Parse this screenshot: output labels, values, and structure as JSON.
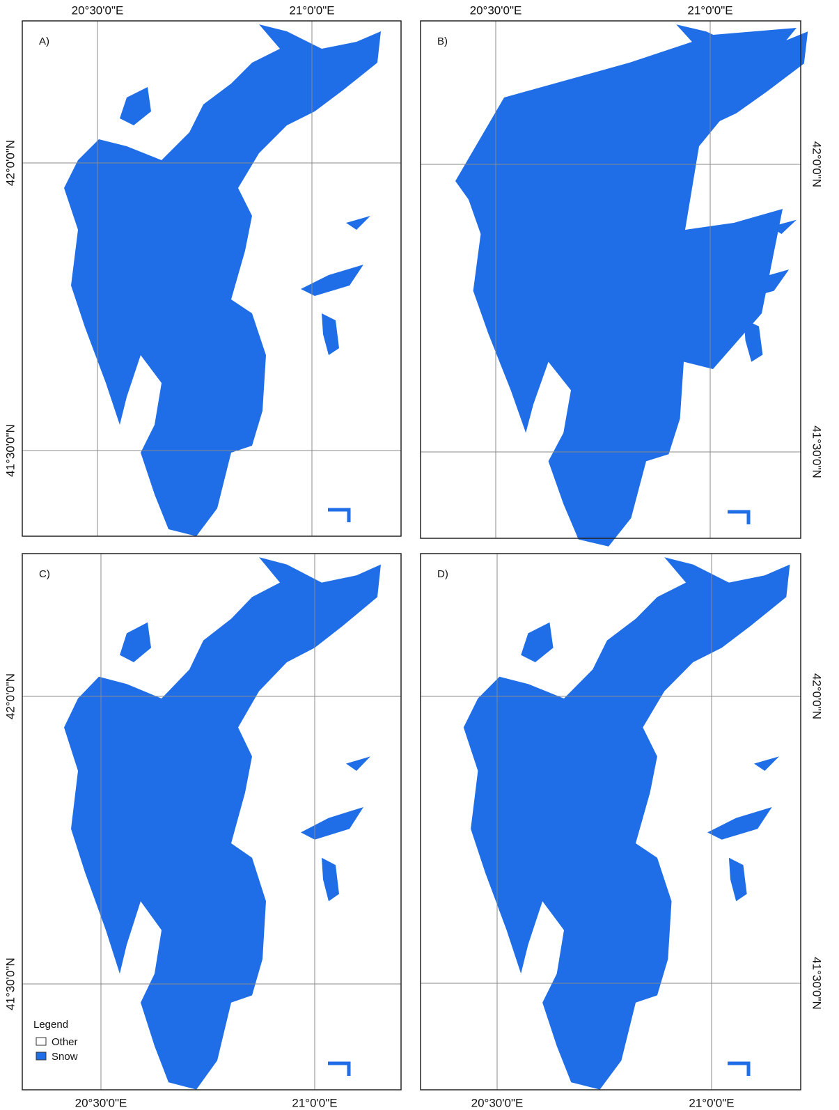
{
  "panels": [
    {
      "label": "A)",
      "lon_labels": [
        "20°30'0\"E",
        "21°0'0\"E"
      ],
      "lat_labels": [
        "42°0'0\"N",
        "41°30'0\"N"
      ]
    },
    {
      "label": "B)",
      "lon_labels": [
        "20°30'0\"E",
        "21°0'0\"E"
      ],
      "lat_labels": [
        "42°0'0\"N",
        "41°30'0\"N"
      ]
    },
    {
      "label": "C)",
      "lon_labels": [
        "20°30'0\"E",
        "21°0'0\"E"
      ],
      "lat_labels": [
        "42°0'0\"N",
        "41°30'0\"N"
      ]
    },
    {
      "label": "D)",
      "lon_labels": [
        "20°30'0\"E",
        "21°0'0\"E"
      ],
      "lat_labels": [
        "42°0'0\"N",
        "41°30'0\"N"
      ]
    }
  ],
  "legend": {
    "title": "Legend",
    "items": [
      "Other",
      "Snow"
    ]
  }
}
